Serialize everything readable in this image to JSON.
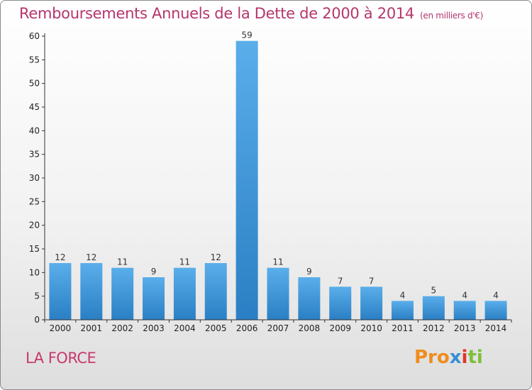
{
  "header": {
    "title": "Remboursements Annuels de la Dette de 2000 à 2014",
    "unit": "(en milliers d'€)"
  },
  "footer": {
    "commune": "LA FORCE",
    "logo_parts": [
      "Pro",
      "x",
      "i",
      "ti"
    ]
  },
  "colors": {
    "title": "#b5356b",
    "bar_top": "#5aaeea",
    "bar_bottom": "#2a7fc4"
  },
  "chart_data": {
    "type": "bar",
    "title": "Remboursements Annuels de la Dette de 2000 à 2014",
    "xlabel": "",
    "ylabel": "",
    "categories": [
      "2000",
      "2001",
      "2002",
      "2003",
      "2004",
      "2005",
      "2006",
      "2007",
      "2008",
      "2009",
      "2010",
      "2011",
      "2012",
      "2013",
      "2014"
    ],
    "values": [
      12,
      12,
      11,
      9,
      11,
      12,
      59,
      11,
      9,
      7,
      7,
      4,
      5,
      4,
      4
    ],
    "ylim": [
      0,
      60
    ],
    "yticks": [
      0,
      5,
      10,
      15,
      20,
      25,
      30,
      35,
      40,
      45,
      50,
      55,
      60
    ],
    "grid": false,
    "legend": "none"
  }
}
